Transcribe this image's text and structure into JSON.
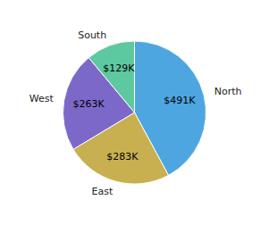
{
  "chart_data": {
    "type": "pie",
    "categories": [
      "North",
      "East",
      "West",
      "South"
    ],
    "values": [
      491,
      283,
      263,
      129
    ],
    "value_labels": [
      "$491K",
      "$283K",
      "$263K",
      "$129K"
    ],
    "colors": [
      "#4da6e0",
      "#c8b050",
      "#7b68c8",
      "#5ec8a0"
    ],
    "data_labels": true
  }
}
